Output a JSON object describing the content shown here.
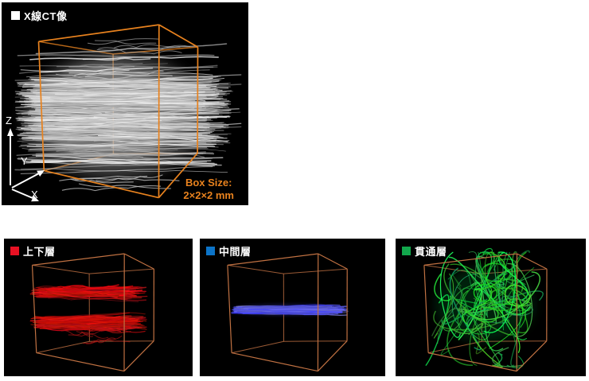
{
  "page": {
    "background": "#ffffff",
    "panel_background": "#000000"
  },
  "panels": {
    "ct": {
      "title": "X線CT像",
      "legend_color": "#ffffff",
      "box_color": "#E8821E",
      "fiber_style": "ct",
      "fiber_color": "#d9d9d9",
      "axes": {
        "x": "X",
        "y": "Y",
        "z": "Z"
      },
      "box_size_label": "Box Size:",
      "box_size_value": "2×2×2 mm",
      "accent_color": "#E8821E"
    },
    "upper_lower": {
      "title": "上下層",
      "legend_color": "#E81123",
      "box_color": "#C07142",
      "fiber_style": "bands",
      "fiber_color": "#D42020"
    },
    "middle": {
      "title": "中間層",
      "legend_color": "#0C74C8",
      "box_color": "#C07142",
      "fiber_style": "slab",
      "fiber_color": "#5050DD"
    },
    "through": {
      "title": "貫通層",
      "legend_color": "#12A74C",
      "box_color": "#C07142",
      "fiber_style": "tangle",
      "fiber_color": "#2ECC40"
    }
  }
}
